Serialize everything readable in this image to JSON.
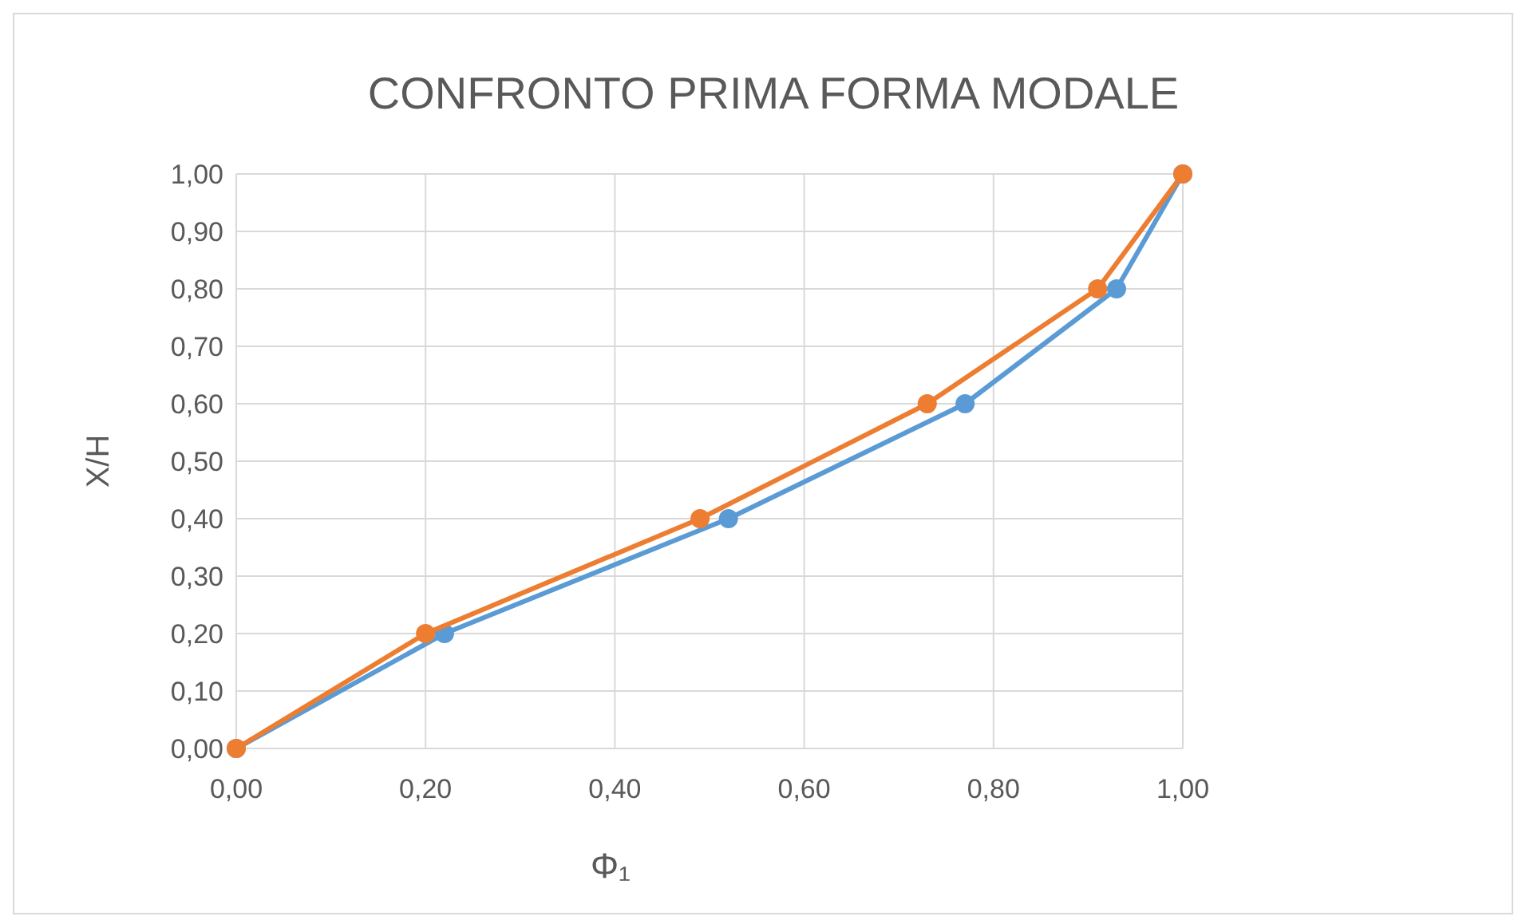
{
  "chart_data": {
    "type": "line",
    "title": "CONFRONTO PRIMA FORMA MODALE",
    "xlabel": "Φ₁",
    "ylabel": "X/H",
    "series": [
      {
        "color": "#5b9bd5",
        "x": [
          0,
          0.22,
          0.52,
          0.77,
          0.93,
          1
        ],
        "values": [
          0,
          0.2,
          0.4,
          0.6,
          0.8,
          1
        ]
      },
      {
        "color": "#ed7d31",
        "x": [
          0,
          0.2,
          0.49,
          0.73,
          0.91,
          1
        ],
        "values": [
          0,
          0.2,
          0.4,
          0.6,
          0.8,
          1
        ]
      }
    ],
    "xlim": [
      0,
      1
    ],
    "ylim": [
      0,
      1
    ],
    "xticks": [
      {
        "value": 0,
        "label": "0,00"
      },
      {
        "value": 0.2,
        "label": "0,20"
      },
      {
        "value": 0.4,
        "label": "0,40"
      },
      {
        "value": 0.6,
        "label": "0,60"
      },
      {
        "value": 0.8,
        "label": "0,80"
      },
      {
        "value": 1,
        "label": "1,00"
      }
    ],
    "yticks": [
      {
        "value": 0,
        "label": "0,00"
      },
      {
        "value": 0.1,
        "label": "0,10"
      },
      {
        "value": 0.2,
        "label": "0,20"
      },
      {
        "value": 0.3,
        "label": "0,30"
      },
      {
        "value": 0.4,
        "label": "0,40"
      },
      {
        "value": 0.5,
        "label": "0,50"
      },
      {
        "value": 0.6,
        "label": "0,60"
      },
      {
        "value": 0.7,
        "label": "0,70"
      },
      {
        "value": 0.8,
        "label": "0,80"
      },
      {
        "value": 0.9,
        "label": "0,90"
      },
      {
        "value": 1,
        "label": "1,00"
      }
    ],
    "grid": true,
    "marker": "circle",
    "line_style": "solid"
  }
}
